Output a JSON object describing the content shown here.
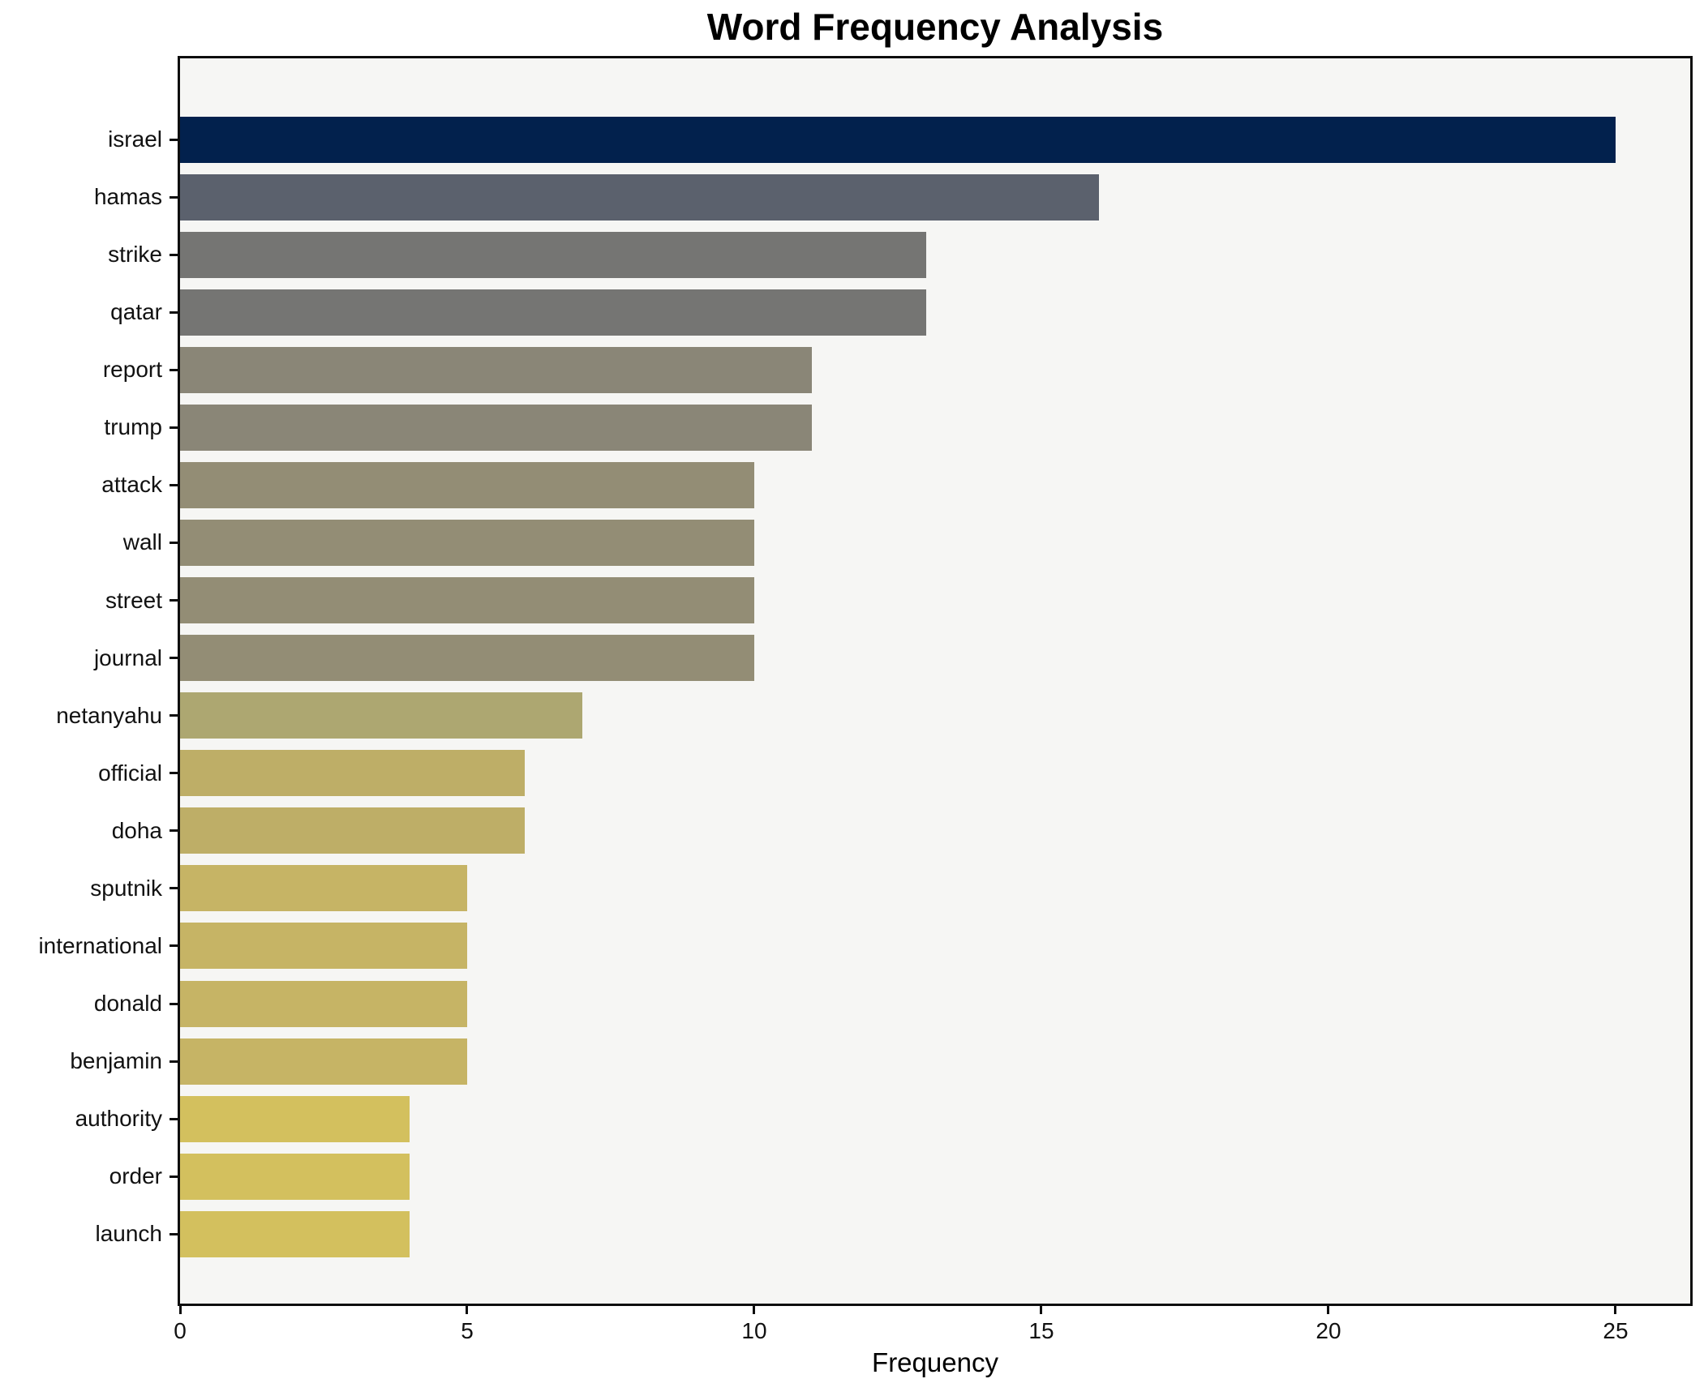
{
  "chart_data": {
    "type": "bar",
    "orientation": "horizontal",
    "title": "Word Frequency Analysis",
    "xlabel": "Frequency",
    "ylabel": "",
    "grid": false,
    "legend": null,
    "xlim": [
      0,
      26.3
    ],
    "x_ticks": [
      0,
      5,
      10,
      15,
      20,
      25
    ],
    "categories": [
      "israel",
      "hamas",
      "strike",
      "qatar",
      "report",
      "trump",
      "attack",
      "wall",
      "street",
      "journal",
      "netanyahu",
      "official",
      "doha",
      "sputnik",
      "international",
      "donald",
      "benjamin",
      "authority",
      "order",
      "launch"
    ],
    "values": [
      25,
      16,
      13,
      13,
      11,
      11,
      10,
      10,
      10,
      10,
      7,
      6,
      6,
      5,
      5,
      5,
      5,
      4,
      4,
      4
    ],
    "bar_colors": [
      "#02214d",
      "#5b616d",
      "#757573",
      "#757573",
      "#8a8677",
      "#8a8677",
      "#938d75",
      "#938d75",
      "#938d75",
      "#938d75",
      "#ada771",
      "#beae67",
      "#beae67",
      "#c6b465",
      "#c6b465",
      "#c6b465",
      "#c6b465",
      "#d3c05e",
      "#d3c05e",
      "#d3c05e"
    ],
    "plot_background": "#f6f6f4",
    "figure_background": "#ffffff",
    "spine_color": "#0e0e0e",
    "title_color": "#000000",
    "tick_label_color": "#111111"
  }
}
